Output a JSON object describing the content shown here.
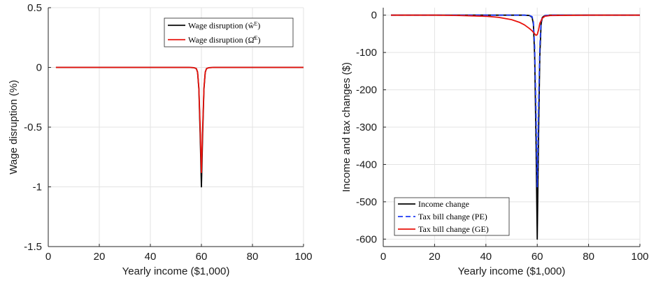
{
  "chart_data": [
    {
      "type": "line",
      "title": "",
      "xlabel": "Yearly income ($1,000)",
      "ylabel": "Wage disruption (%)",
      "xlim": [
        0,
        100
      ],
      "ylim": [
        -1.5,
        0.5
      ],
      "xticks": [
        0,
        20,
        40,
        60,
        80,
        100
      ],
      "xtick_labels": [
        "0",
        "20",
        "40",
        "60",
        "80",
        "100"
      ],
      "yticks": [
        0.5,
        0,
        -0.5,
        -1,
        -1.5
      ],
      "ytick_labels": [
        "0.5",
        "0",
        "-0.5",
        "-1",
        "-1.5"
      ],
      "grid": true,
      "legend_position": "top-right",
      "series": [
        {
          "name": "Wage disruption (ŵ^E)",
          "color": "#000000",
          "style": "solid",
          "x": [
            3,
            40,
            55,
            57,
            58,
            58.5,
            59,
            59.5,
            60,
            60.5,
            61,
            61.5,
            62,
            63,
            65,
            80,
            100
          ],
          "y": [
            0,
            0,
            0,
            -0.002,
            -0.01,
            -0.04,
            -0.18,
            -0.55,
            -1.0,
            -0.55,
            -0.18,
            -0.04,
            -0.01,
            -0.002,
            0,
            0,
            0
          ]
        },
        {
          "name": "Wage disruption (Ω̂^E)",
          "color": "#e8120c",
          "style": "solid",
          "x": [
            3,
            40,
            55,
            57,
            58,
            58.5,
            59,
            59.5,
            60,
            60.5,
            61,
            61.5,
            62,
            63,
            65,
            80,
            100
          ],
          "y": [
            0,
            0,
            0,
            -0.002,
            -0.01,
            -0.04,
            -0.17,
            -0.5,
            -0.88,
            -0.5,
            -0.17,
            -0.04,
            -0.01,
            -0.002,
            0,
            0,
            0
          ]
        }
      ]
    },
    {
      "type": "line",
      "title": "",
      "xlabel": "Yearly income ($1,000)",
      "ylabel": "Income and tax changes ($)",
      "xlim": [
        0,
        100
      ],
      "ylim": [
        -620,
        20
      ],
      "xticks": [
        0,
        20,
        40,
        60,
        80,
        100
      ],
      "xtick_labels": [
        "0",
        "20",
        "40",
        "60",
        "80",
        "100"
      ],
      "yticks": [
        0,
        -100,
        -200,
        -300,
        -400,
        -500,
        -600
      ],
      "ytick_labels": [
        "0",
        "-100",
        "-200",
        "-300",
        "-400",
        "-500",
        "-600"
      ],
      "grid": true,
      "legend_position": "bottom-left",
      "series": [
        {
          "name": "Income change",
          "color": "#000000",
          "style": "solid",
          "x": [
            3,
            40,
            55,
            57,
            58,
            58.5,
            59,
            59.5,
            60,
            60.5,
            61,
            61.5,
            62,
            63,
            65,
            80,
            100
          ],
          "y": [
            0,
            0,
            0,
            -1,
            -6,
            -24,
            -110,
            -330,
            -600,
            -330,
            -110,
            -24,
            -6,
            -1,
            0,
            0,
            0
          ]
        },
        {
          "name": "Tax bill change (PE)",
          "color": "#1f3cf5",
          "style": "dashed",
          "x": [
            3,
            40,
            55,
            57,
            58,
            58.5,
            59,
            59.5,
            60,
            60.5,
            61,
            61.5,
            62,
            63,
            65,
            80,
            100
          ],
          "y": [
            0,
            0,
            0,
            -1,
            -4,
            -18,
            -85,
            -255,
            -460,
            -255,
            -85,
            -18,
            -4,
            -1,
            0,
            0,
            0
          ]
        },
        {
          "name": "Tax bill change (GE)",
          "color": "#e8120c",
          "style": "solid",
          "x": [
            3,
            20,
            30,
            40,
            45,
            50,
            53,
            55,
            57,
            58,
            59,
            59.5,
            60,
            60.5,
            61,
            62,
            63,
            65,
            80,
            100
          ],
          "y": [
            0,
            0,
            -1,
            -3,
            -6,
            -12,
            -19,
            -26,
            -36,
            -42,
            -50,
            -54,
            -52,
            -40,
            -22,
            -8,
            -3,
            -1,
            0,
            0
          ]
        }
      ]
    }
  ]
}
